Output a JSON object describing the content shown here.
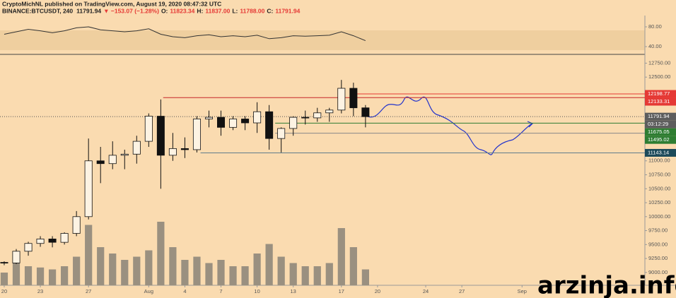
{
  "header": {
    "publisher": "CryptoMichNL published on TradingView.com, August 19, 2020 08:47:32 UTC",
    "symbol": "BINANCE:BTCUSDT, 240",
    "last": "11791.94",
    "change": "▼ −153.07 (−1.28%)",
    "open_label": "O:",
    "open": "11823.34",
    "high_label": "H:",
    "high": "11837.00",
    "low_label": "L:",
    "low": "11788.00",
    "close_label": "C:",
    "close": "11791.94"
  },
  "watermark": "arzinja.info",
  "chart_data": {
    "type": "candlestick",
    "x": [
      0,
      1,
      2,
      3,
      4,
      5,
      6,
      7,
      8,
      9,
      10,
      11,
      12,
      13,
      14,
      15,
      16,
      17,
      18,
      19,
      20,
      21,
      22,
      23,
      24,
      25,
      26,
      27,
      28,
      29,
      30
    ],
    "open": [
      9180,
      9170,
      9380,
      9520,
      9600,
      9540,
      9700,
      10000,
      11000,
      10950,
      11100,
      11120,
      11350,
      11800,
      11100,
      11220,
      11200,
      11750,
      11780,
      11600,
      11750,
      11680,
      11880,
      11400,
      11580,
      11780,
      11770,
      11860,
      11910,
      12300,
      11950
    ],
    "high": [
      9200,
      9420,
      9550,
      9650,
      9650,
      9720,
      10100,
      11400,
      11250,
      11350,
      11200,
      11450,
      11850,
      12100,
      11500,
      11420,
      11800,
      11900,
      11900,
      11800,
      11800,
      12050,
      12000,
      11600,
      11800,
      11900,
      11950,
      11950,
      12450,
      12400,
      12000
    ],
    "low": [
      9130,
      9150,
      9300,
      9460,
      9450,
      9500,
      9650,
      9950,
      10600,
      10850,
      10850,
      10950,
      11250,
      10500,
      11000,
      11050,
      11150,
      11600,
      11450,
      11550,
      11550,
      11500,
      11200,
      11150,
      11450,
      11650,
      11700,
      11700,
      11850,
      11800,
      11600
    ],
    "close": [
      9170,
      9380,
      9520,
      9600,
      9540,
      9700,
      10000,
      11000,
      10950,
      11100,
      11120,
      11350,
      11800,
      11100,
      11220,
      11200,
      11750,
      11780,
      11600,
      11750,
      11680,
      11880,
      11400,
      11580,
      11780,
      11770,
      11860,
      11910,
      12300,
      11950,
      11792
    ],
    "volume": [
      20,
      35,
      30,
      28,
      25,
      30,
      45,
      95,
      60,
      50,
      40,
      45,
      55,
      100,
      60,
      40,
      45,
      35,
      40,
      30,
      30,
      50,
      65,
      45,
      35,
      30,
      30,
      35,
      90,
      60,
      25
    ],
    "volume_ylim": [
      0,
      100
    ],
    "up_color": "#fdf3e3",
    "down_color": "#111111",
    "volume_color": "#9a9080",
    "rsi": [
      65,
      70,
      75,
      72,
      68,
      72,
      78,
      80,
      74,
      72,
      70,
      72,
      76,
      65,
      60,
      58,
      62,
      64,
      60,
      62,
      60,
      63,
      56,
      58,
      62,
      61,
      62,
      63,
      70,
      62,
      52
    ],
    "rsi_ylim": [
      40,
      80
    ],
    "rsi_ticks": [
      {
        "value": 80,
        "label": "80.00"
      },
      {
        "value": 40,
        "label": "40.00"
      }
    ],
    "xlim": [
      -0.35,
      53.2
    ],
    "xticks": [
      {
        "value": 0,
        "label": "20"
      },
      {
        "value": 3,
        "label": "23"
      },
      {
        "value": 7,
        "label": "27"
      },
      {
        "value": 12,
        "label": "Aug"
      },
      {
        "value": 15,
        "label": "4"
      },
      {
        "value": 18,
        "label": "7"
      },
      {
        "value": 21,
        "label": "10"
      },
      {
        "value": 24,
        "label": "13"
      },
      {
        "value": 28,
        "label": "17"
      },
      {
        "value": 31,
        "label": "20"
      },
      {
        "value": 35,
        "label": "24"
      },
      {
        "value": 38,
        "label": "27"
      },
      {
        "value": 43,
        "label": "Sep"
      }
    ],
    "ylim": [
      8770,
      12895
    ],
    "yticks": [
      {
        "value": 12750,
        "label": "12750.00"
      },
      {
        "value": 12500,
        "label": "12500.00"
      },
      {
        "value": 11000,
        "label": "11000.00"
      },
      {
        "value": 10750,
        "label": "10750.00"
      },
      {
        "value": 10500,
        "label": "10500.00"
      },
      {
        "value": 10250,
        "label": "10250.00"
      },
      {
        "value": 10000,
        "label": "10000.00"
      },
      {
        "value": 9750,
        "label": "9750.00"
      },
      {
        "value": 9500,
        "label": "9500.00"
      },
      {
        "value": 9250,
        "label": "9250.00"
      },
      {
        "value": 9000,
        "label": "9000.00"
      }
    ],
    "levels": [
      {
        "value": 12198.77,
        "label": "12198.77",
        "color": "#e53935",
        "bg": "#e53935",
        "from": 28.8
      },
      {
        "value": 12133.31,
        "label": "12133.31",
        "color": "#c62828",
        "bg": "#e53935",
        "from": 13.2
      },
      {
        "value": 11791.94,
        "label": "11791.94",
        "color": "#555555",
        "bg": "#5d5d5d",
        "from": -0.35
      },
      {
        "value": 11675.05,
        "label": "11675.05",
        "color": "#2e7d32",
        "bg": "#2e7d32",
        "from": 22.5
      },
      {
        "value": 11495.02,
        "label": "11495.02",
        "color": "#888888",
        "bg": "#2e7d32",
        "from": 22.5
      },
      {
        "value": 11143.14,
        "label": "11143.14",
        "color": "#607d8b",
        "bg": "#1c4a5a",
        "from": 16.3
      }
    ],
    "countdown": "03:12:29"
  }
}
